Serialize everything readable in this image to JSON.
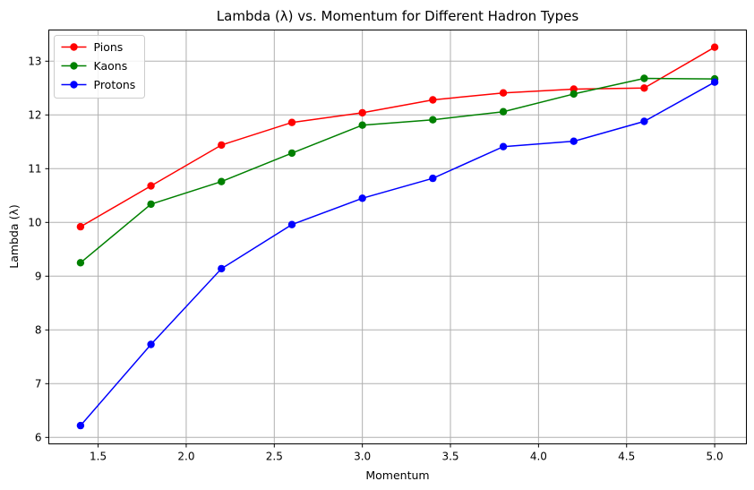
{
  "chart_data": {
    "type": "line",
    "title": "Lambda (λ) vs. Momentum for Different Hadron Types",
    "xlabel": "Momentum",
    "ylabel": "Lambda (λ)",
    "x": [
      1.4,
      1.8,
      2.2,
      2.6,
      3.0,
      3.4,
      3.8,
      4.2,
      4.6,
      5.0
    ],
    "xlim": [
      1.22,
      5.18
    ],
    "ylim": [
      5.88,
      13.58
    ],
    "xticks": [
      1.5,
      2.0,
      2.5,
      3.0,
      3.5,
      4.0,
      4.5,
      5.0
    ],
    "xtick_labels": [
      "1.5",
      "2.0",
      "2.5",
      "3.0",
      "3.5",
      "4.0",
      "4.5",
      "5.0"
    ],
    "yticks": [
      6,
      7,
      8,
      9,
      10,
      11,
      12,
      13
    ],
    "ytick_labels": [
      "6",
      "7",
      "8",
      "9",
      "10",
      "11",
      "12",
      "13"
    ],
    "grid": true,
    "legend_position": "top-left",
    "series": [
      {
        "name": "Pions",
        "color": "#ff0000",
        "marker": "circle",
        "values": [
          9.92,
          10.68,
          11.44,
          11.86,
          12.04,
          12.28,
          12.41,
          12.48,
          12.5,
          13.26
        ]
      },
      {
        "name": "Kaons",
        "color": "#008000",
        "marker": "circle",
        "values": [
          9.25,
          10.34,
          10.76,
          11.29,
          11.81,
          11.91,
          12.06,
          12.39,
          12.68,
          12.67
        ]
      },
      {
        "name": "Protons",
        "color": "#0000ff",
        "marker": "circle",
        "values": [
          6.22,
          7.73,
          9.14,
          9.96,
          10.45,
          10.82,
          11.41,
          11.51,
          11.88,
          12.61
        ]
      }
    ]
  }
}
